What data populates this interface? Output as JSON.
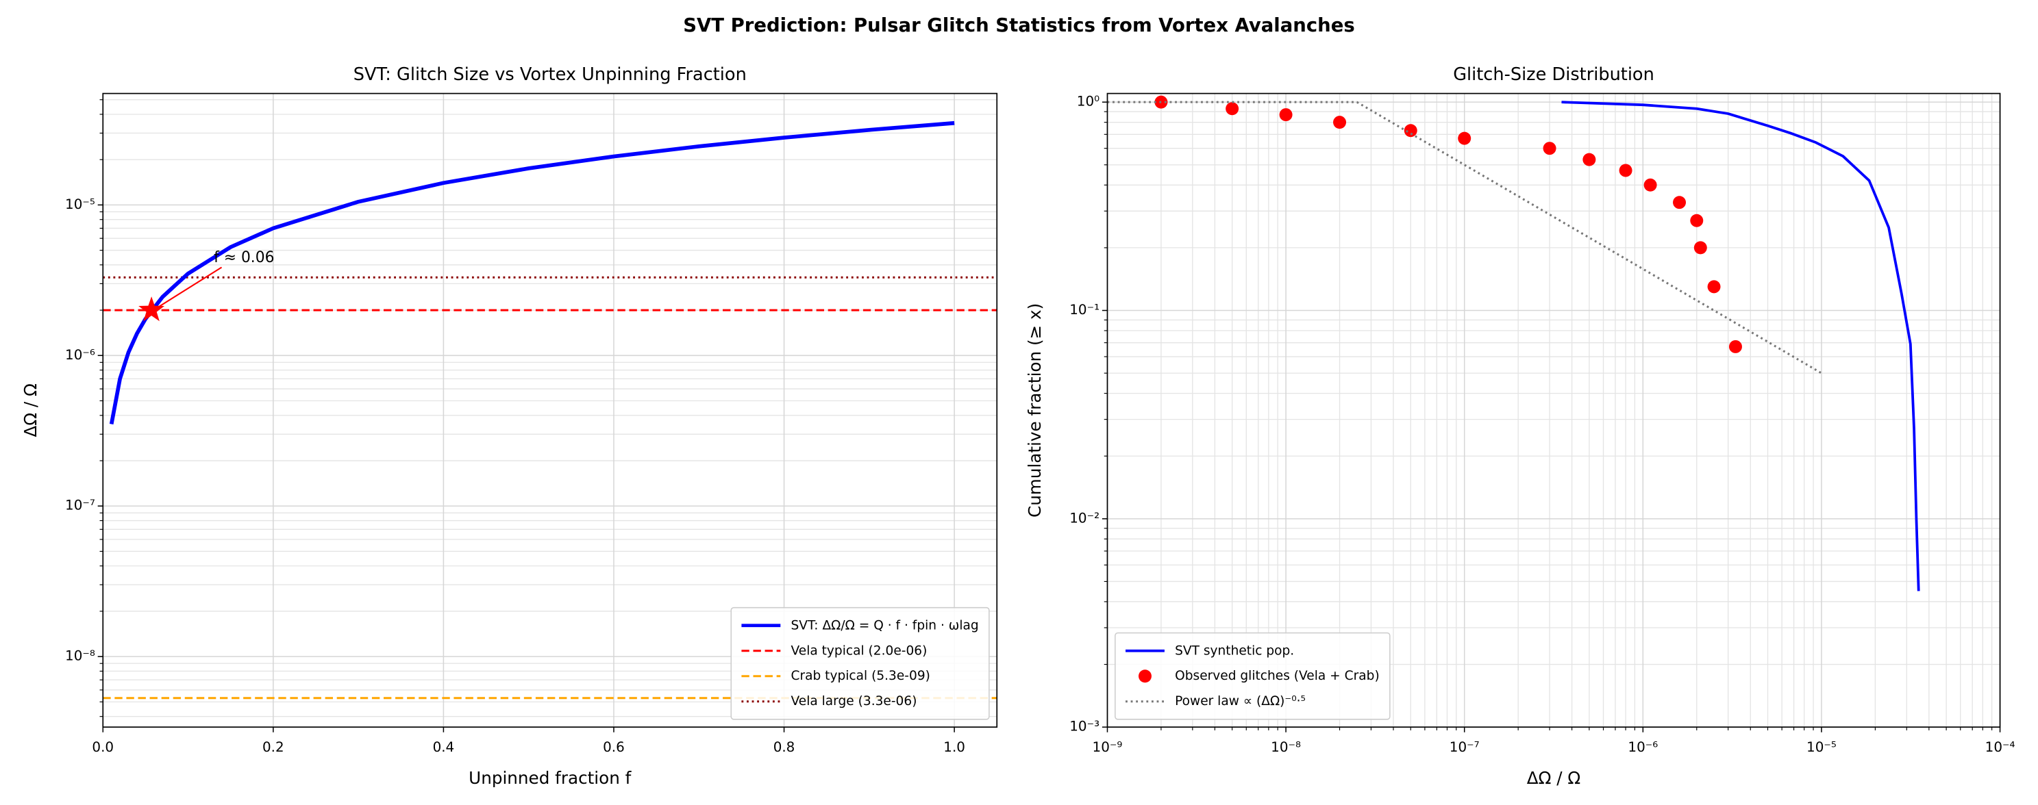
{
  "title": "SVT Prediction: Pulsar Glitch Statistics from Vortex Avalanches",
  "chart_data": [
    {
      "type": "line",
      "title": "SVT: Glitch Size vs Vortex Unpinning Fraction",
      "xlabel": "Unpinned fraction  f",
      "ylabel": "ΔΩ / Ω",
      "xscale": "linear",
      "yscale": "log",
      "xlim": [
        0,
        1.05
      ],
      "ylim": [
        3.4e-09,
        5.5e-05
      ],
      "xticks": [
        {
          "value": 0,
          "label": "0.0"
        },
        0.2,
        0.4,
        0.6,
        0.8,
        {
          "value": 1,
          "label": "1.0"
        }
      ],
      "yticks": [
        {
          "value": 1e-08,
          "label": "10⁻⁸"
        },
        {
          "value": 1e-07,
          "label": "10⁻⁷"
        },
        {
          "value": 1e-06,
          "label": "10⁻⁶"
        },
        {
          "value": 1e-05,
          "label": "10⁻⁵"
        }
      ],
      "grid": true,
      "legend": "lower right",
      "series": [
        {
          "name": "SVT:  ΔΩ/Ω = Q · f · fpin · ωlag",
          "color": "#0000ff",
          "kind": "line",
          "style": "solid",
          "width": 3,
          "x": [
            0.01,
            0.02,
            0.03,
            0.04,
            0.05,
            0.07,
            0.1,
            0.15,
            0.2,
            0.3,
            0.4,
            0.5,
            0.6,
            0.7,
            0.8,
            0.9,
            1.0
          ],
          "values": [
            3.5e-07,
            7e-07,
            1.05e-06,
            1.4e-06,
            1.75e-06,
            2.45e-06,
            3.5e-06,
            5.25e-06,
            7e-06,
            1.05e-05,
            1.4e-05,
            1.75e-05,
            2.1e-05,
            2.45e-05,
            2.8e-05,
            3.15e-05,
            3.5e-05
          ]
        }
      ],
      "hlines": [
        {
          "name": "Vela typical  (2.0e-06)",
          "value": 2e-06,
          "color": "#ff0000",
          "style": "dashed"
        },
        {
          "name": "Crab typical  (5.3e-09)",
          "value": 5.3e-09,
          "color": "#ffa500",
          "style": "dashed"
        },
        {
          "name": "Vela large    (3.3e-06)",
          "value": 3.3e-06,
          "color": "#8b0000",
          "style": "dotted"
        }
      ],
      "annotation": {
        "text": "f ≈ 0.06",
        "x": 0.057,
        "y": 2e-06,
        "color": "#ff0000"
      }
    },
    {
      "type": "line",
      "title": "Glitch-Size Distribution",
      "xlabel": "ΔΩ / Ω",
      "ylabel": "Cumulative fraction  (≥ x)",
      "xscale": "log",
      "yscale": "log",
      "xlim": [
        1e-09,
        0.0001
      ],
      "ylim": [
        0.001,
        1.1
      ],
      "xticks": [
        {
          "value": 1e-09,
          "label": "10⁻⁹"
        },
        {
          "value": 1e-08,
          "label": "10⁻⁸"
        },
        {
          "value": 1e-07,
          "label": "10⁻⁷"
        },
        {
          "value": 1e-06,
          "label": "10⁻⁶"
        },
        {
          "value": 1e-05,
          "label": "10⁻⁵"
        },
        {
          "value": 0.0001,
          "label": "10⁻⁴"
        }
      ],
      "yticks": [
        {
          "value": 0.001,
          "label": "10⁻³"
        },
        {
          "value": 0.01,
          "label": "10⁻²"
        },
        {
          "value": 0.1,
          "label": "10⁻¹"
        },
        {
          "value": 1,
          "label": "10⁰"
        }
      ],
      "grid": true,
      "legend": "lower left",
      "series": [
        {
          "name": "SVT synthetic pop.",
          "color": "#0000ff",
          "kind": "line",
          "style": "solid",
          "width": 2,
          "x": [
            3.5e-07,
            1e-06,
            2e-06,
            3e-06,
            5e-06,
            6.7e-06,
            9.3e-06,
            1.32e-05,
            1.85e-05,
            2.38e-05,
            2.81e-05,
            3.15e-05,
            3.3e-05,
            3.4e-05,
            3.5e-05
          ],
          "values": [
            1.0,
            0.97,
            0.93,
            0.88,
            0.77,
            0.71,
            0.64,
            0.55,
            0.42,
            0.25,
            0.12,
            0.069,
            0.027,
            0.0099,
            0.0045
          ]
        },
        {
          "name": "Observed glitches (Vela + Crab)",
          "color": "#ff0000",
          "kind": "scatter",
          "x": [
            2e-09,
            5e-09,
            1e-08,
            2e-08,
            5e-08,
            1e-07,
            3e-07,
            5e-07,
            8e-07,
            1.1e-06,
            1.6e-06,
            2e-06,
            2.1e-06,
            2.5e-06,
            3.3e-06
          ],
          "values": [
            1.0,
            0.93,
            0.87,
            0.8,
            0.73,
            0.67,
            0.6,
            0.53,
            0.47,
            0.4,
            0.33,
            0.27,
            0.2,
            0.13,
            0.067
          ]
        },
        {
          "name": "Power law  ∝ (ΔΩ)⁻⁰·⁵",
          "color": "#777777",
          "kind": "line",
          "style": "dotted",
          "width": 1.6,
          "x": [
            1e-09,
            2.5e-08,
            1e-05
          ],
          "values": [
            1,
            1,
            0.05
          ]
        }
      ]
    }
  ]
}
